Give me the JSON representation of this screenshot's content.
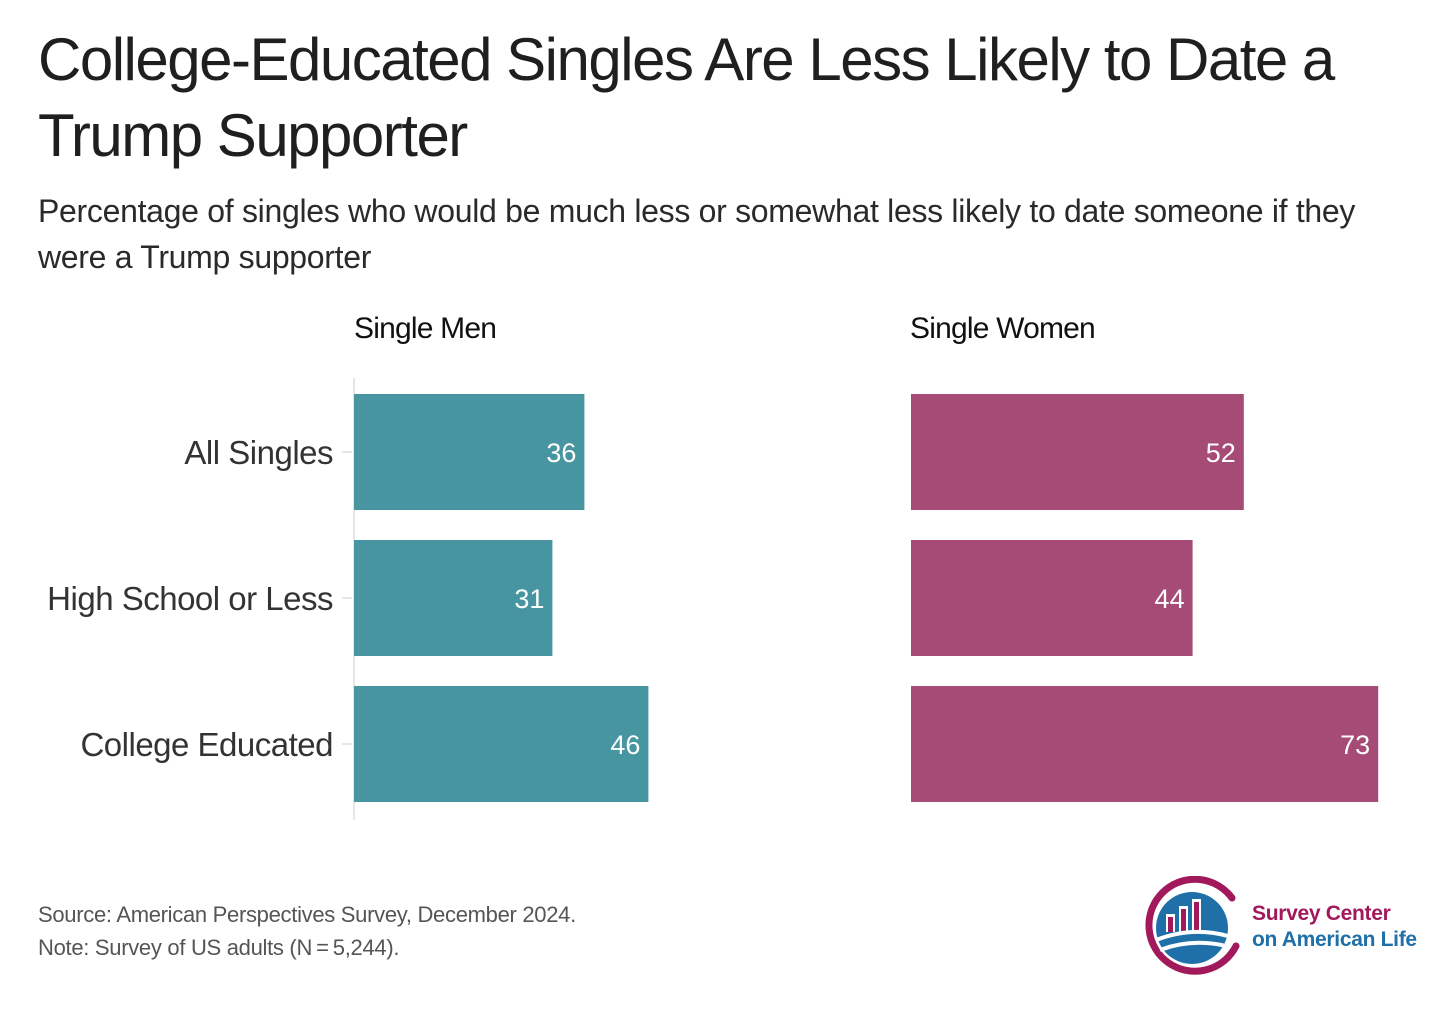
{
  "title": "College-Educated Singles Are Less Likely to Date a Trump Supporter",
  "subtitle": "Percentage of singles who would be much less or somewhat less likely to date someone if they were a Trump supporter",
  "source": "Source: American Perspectives Survey, December 2024.",
  "note": "Note: Survey of US adults (N = 5,244).",
  "logo": {
    "line1": "Survey Center",
    "line2": "on American Life",
    "color_primary": "#a2195b",
    "color_secondary": "#1f6fa8"
  },
  "chart_data": {
    "type": "bar",
    "orientation": "horizontal",
    "categories": [
      "All Singles",
      "High School or Less",
      "College Educated"
    ],
    "series": [
      {
        "name": "Single Men",
        "values": [
          36,
          31,
          46
        ],
        "color": "#4795a1"
      },
      {
        "name": "Single Women",
        "values": [
          52,
          44,
          73
        ],
        "color": "#a54b76"
      }
    ],
    "xlim": [
      0,
      73
    ],
    "data_labels": true,
    "grid": false,
    "legend": "none"
  }
}
